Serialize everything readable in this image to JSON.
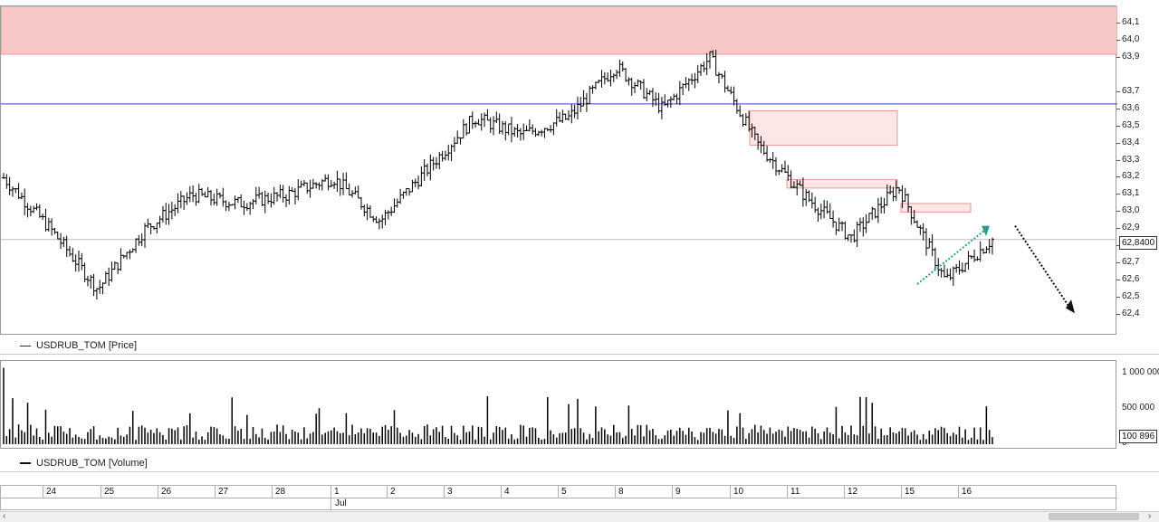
{
  "price_panel": {
    "legend": "USDRUB_TOM [Price]",
    "last_price_label": "62,8400",
    "y_tick_labels": [
      "64,1",
      "64,0",
      "63,9",
      "63,7",
      "63,6",
      "63,5",
      "63,4",
      "63,3",
      "63,2",
      "63,1",
      "63,0",
      "62,9",
      "62,8",
      "62,7",
      "62,6",
      "62,5",
      "62,4"
    ]
  },
  "volume_panel": {
    "legend": "USDRUB_TOM [Volume]",
    "last_volume_label": "100 896",
    "y_tick_labels": [
      "1 000 000",
      "500 000",
      "0"
    ]
  },
  "date_axis": {
    "days": [
      "24",
      "25",
      "26",
      "27",
      "28",
      "1",
      "2",
      "3",
      "4",
      "5",
      "8",
      "9",
      "10",
      "11",
      "12",
      "15",
      "16"
    ],
    "month_label": "Jul"
  },
  "colors": {
    "resistance_zone": "#f8c8c8",
    "horizontal_line": "#3b3bd0",
    "candle": "#000000",
    "trend_arrow": "#2a9d8f",
    "forecast_arrow": "#111111"
  },
  "chart_data": [
    {
      "type": "ohlc",
      "series_name": "USDRUB_TOM [Price]",
      "y_range": [
        62.35,
        64.15
      ],
      "horizontal_level": 63.63,
      "resistance_zone": [
        63.92,
        64.15
      ],
      "last_price": 62.84,
      "approx_close_path": [
        {
          "session": "start",
          "value": 63.2
        },
        {
          "session": "24",
          "value": 62.9
        },
        {
          "session": "25",
          "value": 62.55
        },
        {
          "session": "25",
          "value": 62.9
        },
        {
          "session": "26",
          "value": 63.1
        },
        {
          "session": "27",
          "value": 63.05
        },
        {
          "session": "28",
          "value": 63.1
        },
        {
          "session": "28",
          "value": 63.2
        },
        {
          "session": "1",
          "value": 62.95
        },
        {
          "session": "2",
          "value": 63.25
        },
        {
          "session": "3",
          "value": 63.55
        },
        {
          "session": "4",
          "value": 63.45
        },
        {
          "session": "5",
          "value": 63.55
        },
        {
          "session": "8",
          "value": 63.85
        },
        {
          "session": "8",
          "value": 63.6
        },
        {
          "session": "9",
          "value": 63.9
        },
        {
          "session": "10",
          "value": 63.4
        },
        {
          "session": "11",
          "value": 63.1
        },
        {
          "session": "11",
          "value": 62.85
        },
        {
          "session": "12",
          "value": 63.15
        },
        {
          "session": "15",
          "value": 62.6
        },
        {
          "session": "16",
          "value": 62.84
        }
      ]
    },
    {
      "type": "bar",
      "series_name": "USDRUB_TOM [Volume]",
      "y_range": [
        0,
        1100000
      ],
      "last_value": 100896
    }
  ]
}
